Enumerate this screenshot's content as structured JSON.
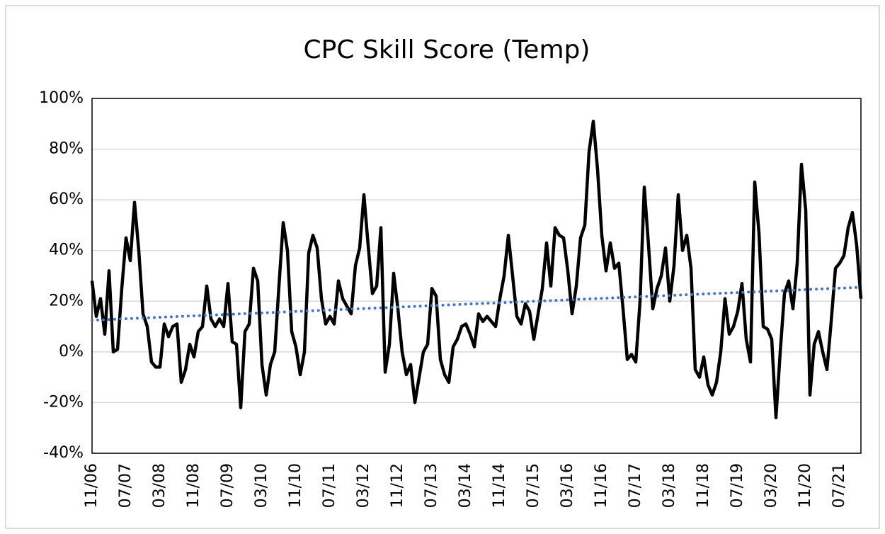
{
  "chart_data": {
    "type": "line",
    "title": "CPC Skill Score (Temp)",
    "categories": [
      "11/06",
      null,
      null,
      null,
      null,
      null,
      null,
      null,
      "07/07",
      null,
      null,
      null,
      null,
      null,
      null,
      null,
      "03/08",
      null,
      null,
      null,
      null,
      null,
      null,
      null,
      "11/08",
      null,
      null,
      null,
      null,
      null,
      null,
      null,
      "07/09",
      null,
      null,
      null,
      null,
      null,
      null,
      null,
      "03/10",
      null,
      null,
      null,
      null,
      null,
      null,
      null,
      "11/10",
      null,
      null,
      null,
      null,
      null,
      null,
      null,
      "07/11",
      null,
      null,
      null,
      null,
      null,
      null,
      null,
      "03/12",
      null,
      null,
      null,
      null,
      null,
      null,
      null,
      "11/12",
      null,
      null,
      null,
      null,
      null,
      null,
      null,
      "07/13",
      null,
      null,
      null,
      null,
      null,
      null,
      null,
      "03/14",
      null,
      null,
      null,
      null,
      null,
      null,
      null,
      "11/14",
      null,
      null,
      null,
      null,
      null,
      null,
      null,
      "07/15",
      null,
      null,
      null,
      null,
      null,
      null,
      null,
      "03/16",
      null,
      null,
      null,
      null,
      null,
      null,
      null,
      "11/16",
      null,
      null,
      null,
      null,
      null,
      null,
      null,
      "07/17",
      null,
      null,
      null,
      null,
      null,
      null,
      null,
      "03/18",
      null,
      null,
      null,
      null,
      null,
      null,
      null,
      "11/18",
      null,
      null,
      null,
      null,
      null,
      null,
      null,
      "07/19",
      null,
      null,
      null,
      null,
      null,
      null,
      null,
      "03/20",
      null,
      null,
      null,
      null,
      null,
      null,
      null,
      "11/20",
      null,
      null,
      null,
      null,
      null,
      null,
      null,
      "07/21",
      null,
      null,
      null,
      null,
      null
    ],
    "values": [
      28,
      14,
      21,
      7,
      32,
      0,
      1,
      25,
      45,
      36,
      59,
      40,
      15,
      10,
      -4,
      -6,
      -6,
      11,
      6,
      10,
      11,
      -12,
      -7,
      3,
      -2,
      8,
      10,
      26,
      13,
      10,
      13,
      10,
      27,
      4,
      3,
      -22,
      8,
      11,
      33,
      28,
      -5,
      -17,
      -5,
      0,
      26,
      51,
      40,
      8,
      2,
      -9,
      0,
      39,
      46,
      41,
      21,
      11,
      14,
      11,
      28,
      21,
      18,
      15,
      34,
      41,
      62,
      42,
      23,
      26,
      49,
      -8,
      3,
      31,
      17,
      0,
      -9,
      -5,
      -20,
      -10,
      0,
      3,
      25,
      22,
      -3,
      -9,
      -12,
      2,
      5,
      10,
      11,
      7,
      2,
      15,
      12,
      14,
      12,
      10,
      21,
      30,
      46,
      30,
      14,
      11,
      19,
      16,
      5,
      15,
      25,
      43,
      26,
      49,
      46,
      45,
      32,
      15,
      26,
      45,
      50,
      79,
      91,
      72,
      46,
      32,
      43,
      33,
      35,
      17,
      -3,
      -1,
      -4,
      20,
      65,
      42,
      17,
      25,
      30,
      41,
      20,
      34,
      62,
      40,
      46,
      33,
      -7,
      -10,
      -2,
      -13,
      -17,
      -12,
      0,
      21,
      7,
      10,
      16,
      27,
      5,
      -4,
      67,
      47,
      10,
      9,
      5,
      -26,
      0,
      23,
      28,
      17,
      35,
      74,
      56,
      -17,
      3,
      8,
      0,
      -7,
      12,
      33,
      35,
      38,
      49,
      55,
      42,
      21
    ],
    "color": "#000000",
    "trendline": {
      "color": "#4472c4",
      "values": [
        12.5,
        25.5
      ]
    },
    "ylim": [
      -40,
      100
    ],
    "yticks": [
      {
        "value": -40,
        "label": "-40%"
      },
      {
        "value": -20,
        "label": "-20%"
      },
      {
        "value": 0,
        "label": "0%"
      },
      {
        "value": 20,
        "label": "20%"
      },
      {
        "value": 40,
        "label": "40%"
      },
      {
        "value": 60,
        "label": "60%"
      },
      {
        "value": 80,
        "label": "80%"
      },
      {
        "value": 100,
        "label": "100%"
      }
    ],
    "grid": true
  }
}
